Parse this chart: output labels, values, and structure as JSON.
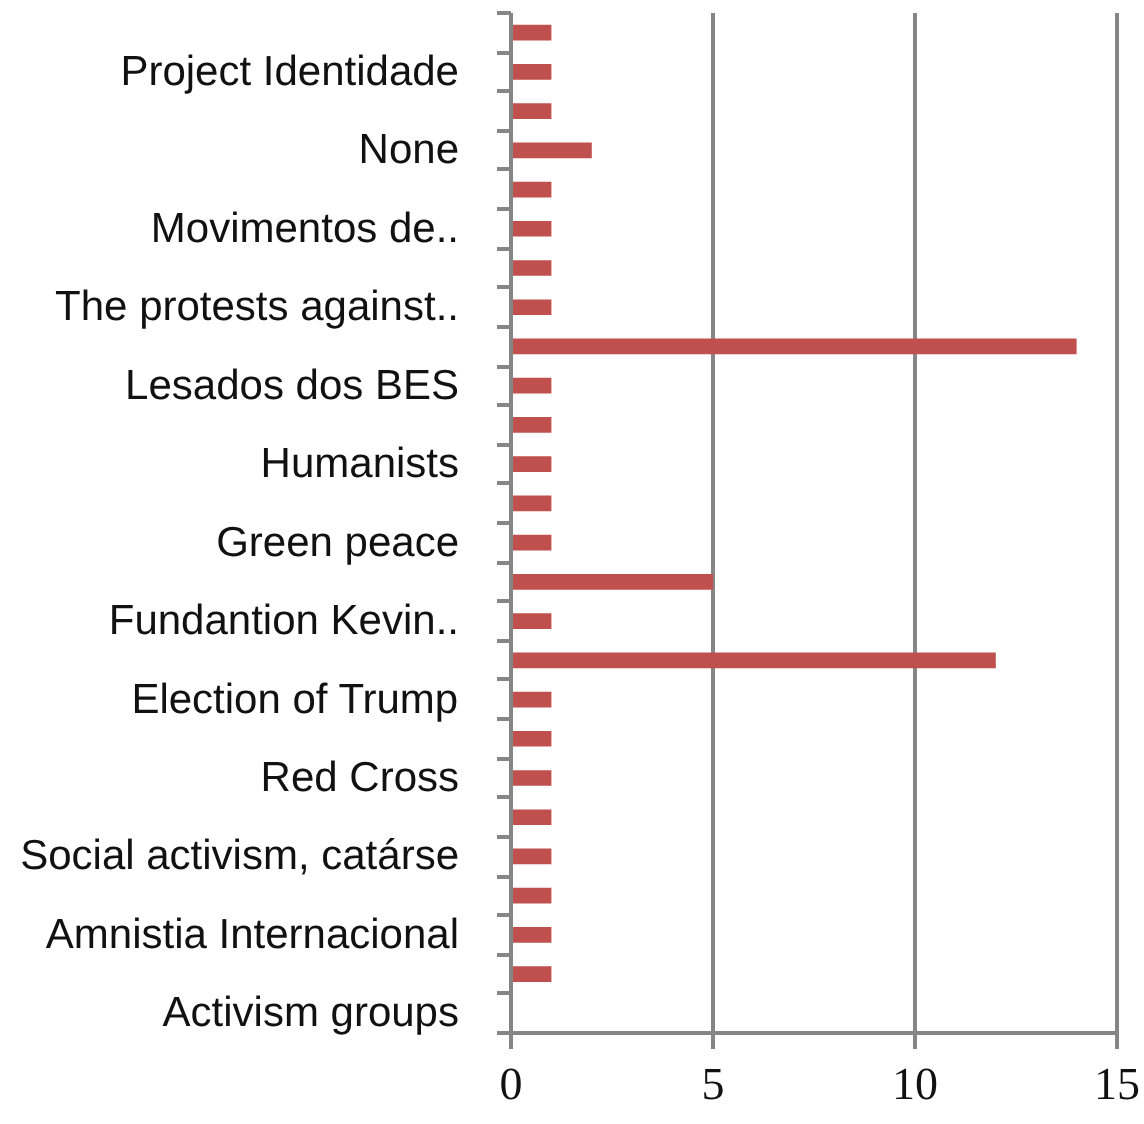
{
  "chart_data": {
    "type": "bar",
    "orientation": "horizontal",
    "categories": [
      null,
      "Project Identidade",
      null,
      "None",
      null,
      "Movimentos de..",
      null,
      "The protests against..",
      null,
      "Lesados dos BES",
      null,
      "Humanists",
      null,
      "Green peace",
      null,
      "Fundantion Kevin..",
      null,
      "Election of Trump",
      null,
      "Red Cross",
      null,
      "Social activism, catárse",
      null,
      "Amnistia Internacional",
      null,
      "Activism groups"
    ],
    "values": [
      1,
      1,
      1,
      2,
      1,
      1,
      1,
      1,
      14,
      1,
      1,
      1,
      1,
      1,
      5,
      1,
      12,
      1,
      1,
      1,
      1,
      1,
      1,
      1,
      1,
      0
    ],
    "color": "#c0504d",
    "xlim": [
      0,
      15
    ],
    "xticks": [
      0,
      5,
      10,
      15
    ],
    "grid": "x"
  }
}
